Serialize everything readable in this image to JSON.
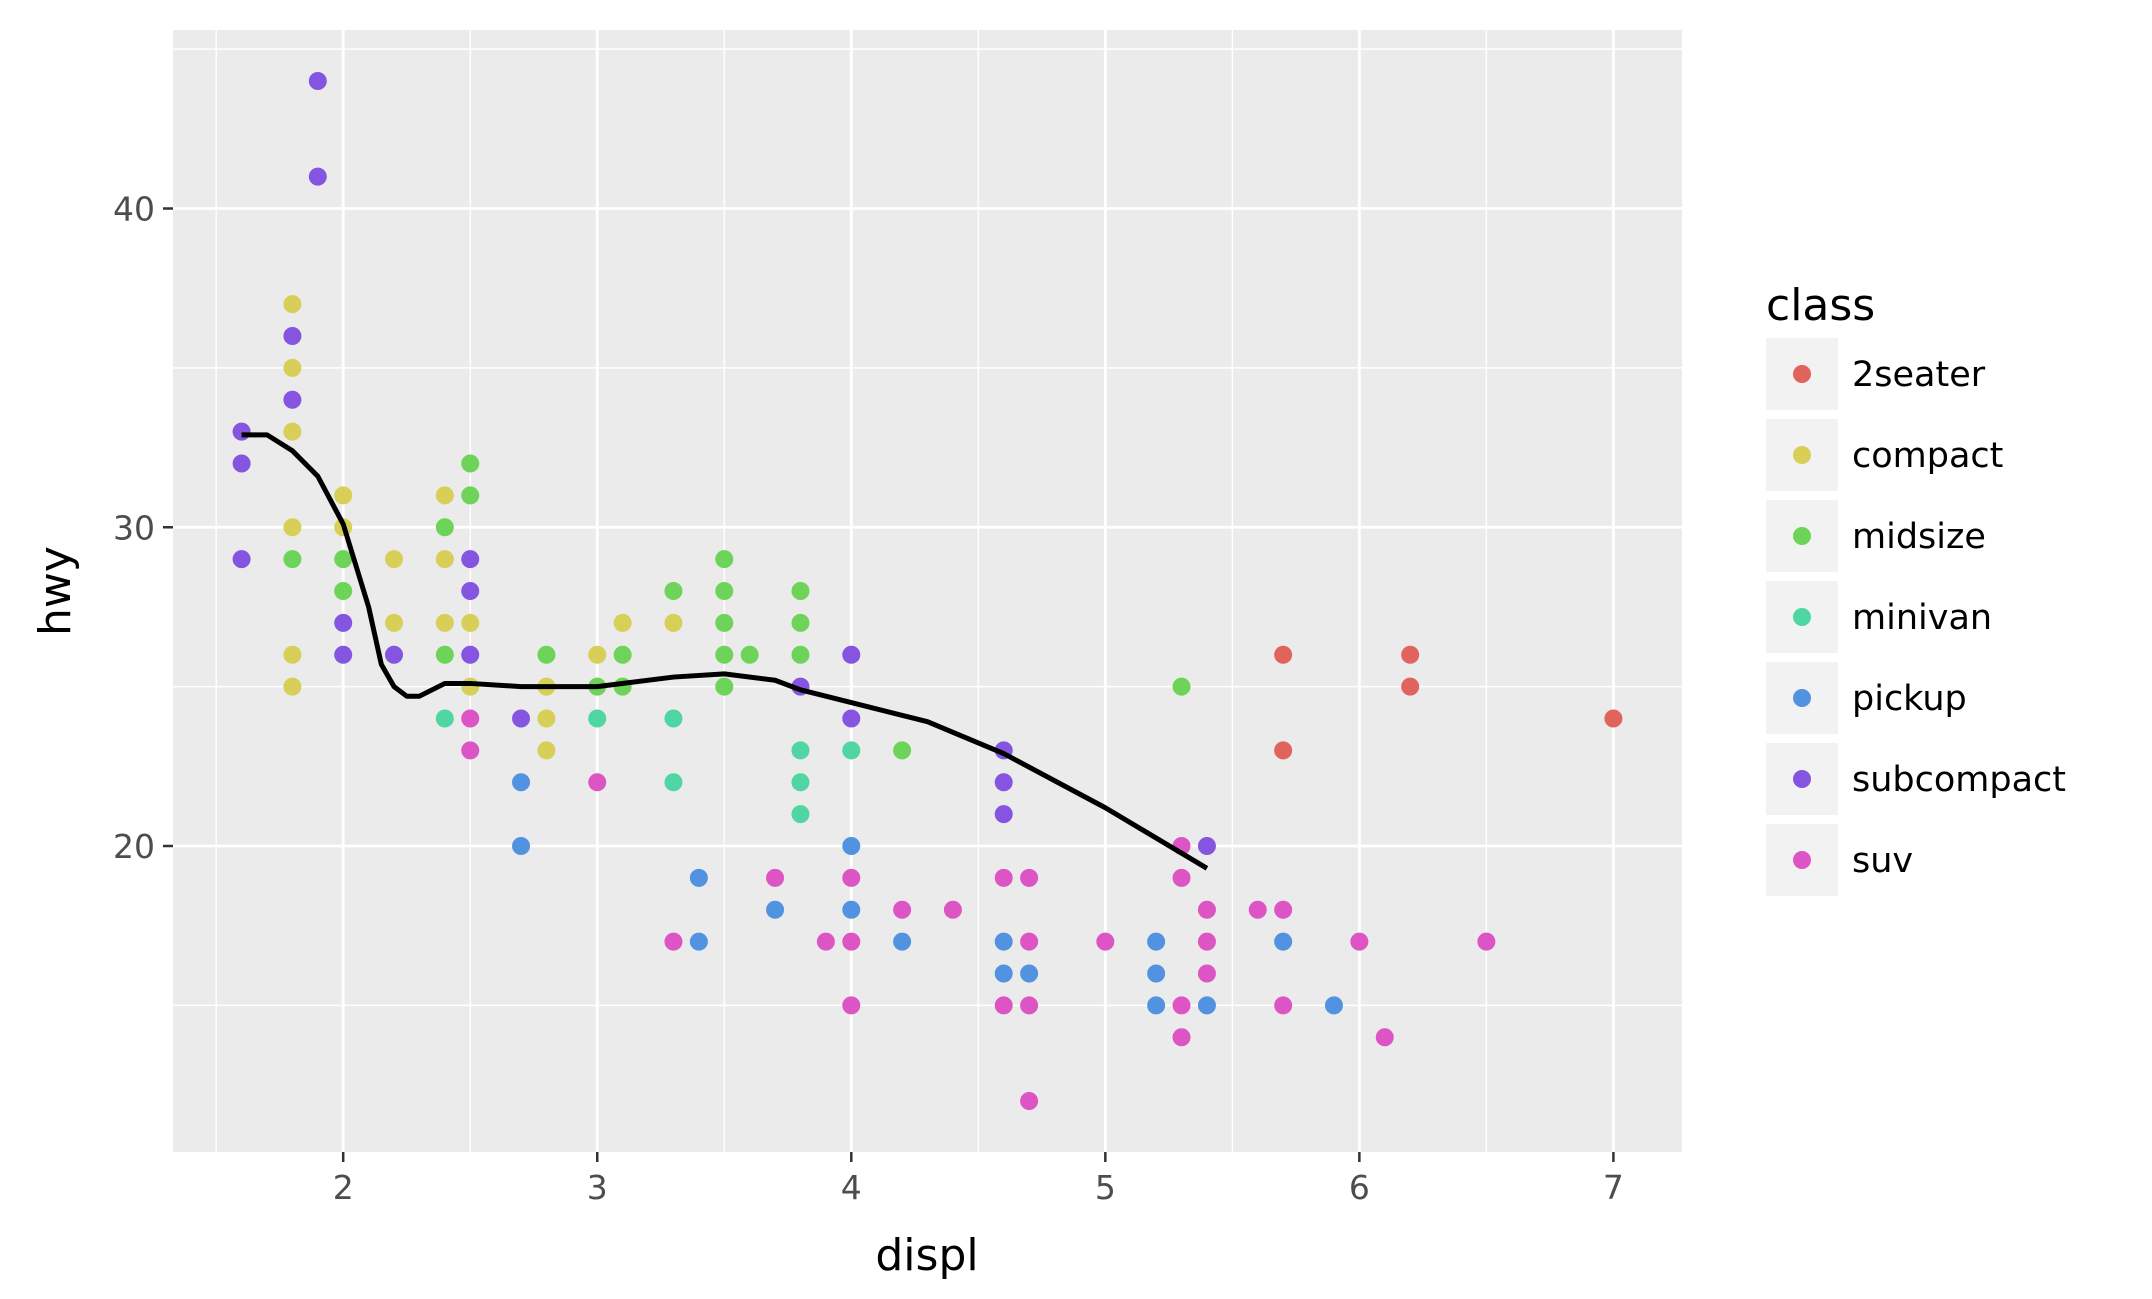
{
  "chart_data": {
    "type": "scatter",
    "xlabel": "displ",
    "ylabel": "hwy",
    "xlim": [
      1.33,
      7.27
    ],
    "ylim": [
      10.4,
      45.6
    ],
    "x_ticks": [
      2,
      3,
      4,
      5,
      6,
      7
    ],
    "y_ticks": [
      20,
      30,
      40
    ],
    "x_tick_labels": [
      "2",
      "3",
      "4",
      "5",
      "6",
      "7"
    ],
    "y_tick_labels": [
      "20",
      "30",
      "40"
    ],
    "grid": true,
    "legend": {
      "title": "class",
      "placement": "right",
      "entries": [
        {
          "label": "2seater",
          "color": "#E0645C"
        },
        {
          "label": "compact",
          "color": "#D7CF57"
        },
        {
          "label": "midsize",
          "color": "#6DD459"
        },
        {
          "label": "minivan",
          "color": "#4FD6A3"
        },
        {
          "label": "pickup",
          "color": "#5193E0"
        },
        {
          "label": "subcompact",
          "color": "#8554E0"
        },
        {
          "label": "suv",
          "color": "#DD55C4"
        }
      ]
    },
    "series": [
      {
        "name": "2seater",
        "points": [
          [
            5.7,
            26
          ],
          [
            5.7,
            23
          ],
          [
            6.2,
            26
          ],
          [
            6.2,
            25
          ],
          [
            7.0,
            24
          ]
        ]
      },
      {
        "name": "compact",
        "points": [
          [
            1.8,
            37
          ],
          [
            1.8,
            35
          ],
          [
            1.8,
            33
          ],
          [
            1.8,
            30
          ],
          [
            1.8,
            26
          ],
          [
            1.8,
            25
          ],
          [
            2.0,
            31
          ],
          [
            2.0,
            30
          ],
          [
            2.2,
            29
          ],
          [
            2.2,
            27
          ],
          [
            2.4,
            31
          ],
          [
            2.4,
            29
          ],
          [
            2.4,
            27
          ],
          [
            2.5,
            27
          ],
          [
            2.5,
            25
          ],
          [
            2.8,
            25
          ],
          [
            2.8,
            24
          ],
          [
            2.8,
            23
          ],
          [
            3.0,
            26
          ],
          [
            3.1,
            27
          ],
          [
            3.3,
            27
          ]
        ]
      },
      {
        "name": "midsize",
        "points": [
          [
            1.8,
            29
          ],
          [
            2.0,
            29
          ],
          [
            2.0,
            28
          ],
          [
            2.4,
            30
          ],
          [
            2.4,
            26
          ],
          [
            2.5,
            32
          ],
          [
            2.5,
            31
          ],
          [
            2.8,
            26
          ],
          [
            3.0,
            25
          ],
          [
            3.1,
            26
          ],
          [
            3.1,
            25
          ],
          [
            3.3,
            28
          ],
          [
            3.5,
            29
          ],
          [
            3.5,
            28
          ],
          [
            3.5,
            27
          ],
          [
            3.5,
            26
          ],
          [
            3.5,
            25
          ],
          [
            3.6,
            26
          ],
          [
            3.8,
            28
          ],
          [
            3.8,
            27
          ],
          [
            3.8,
            26
          ],
          [
            4.2,
            23
          ],
          [
            5.3,
            25
          ]
        ]
      },
      {
        "name": "minivan",
        "points": [
          [
            2.4,
            24
          ],
          [
            3.0,
            24
          ],
          [
            3.3,
            24
          ],
          [
            3.3,
            22
          ],
          [
            3.8,
            23
          ],
          [
            3.8,
            22
          ],
          [
            3.8,
            21
          ],
          [
            4.0,
            23
          ]
        ]
      },
      {
        "name": "pickup",
        "points": [
          [
            2.7,
            22
          ],
          [
            2.7,
            20
          ],
          [
            3.4,
            19
          ],
          [
            3.4,
            17
          ],
          [
            3.7,
            18
          ],
          [
            4.0,
            20
          ],
          [
            4.0,
            18
          ],
          [
            4.2,
            17
          ],
          [
            4.6,
            17
          ],
          [
            4.6,
            16
          ],
          [
            4.7,
            16
          ],
          [
            5.2,
            17
          ],
          [
            5.2,
            16
          ],
          [
            5.2,
            15
          ],
          [
            5.4,
            15
          ],
          [
            5.7,
            17
          ],
          [
            5.9,
            15
          ]
        ]
      },
      {
        "name": "subcompact",
        "points": [
          [
            1.6,
            33
          ],
          [
            1.6,
            32
          ],
          [
            1.6,
            29
          ],
          [
            1.8,
            36
          ],
          [
            1.8,
            34
          ],
          [
            1.9,
            44
          ],
          [
            1.9,
            41
          ],
          [
            2.0,
            27
          ],
          [
            2.0,
            26
          ],
          [
            2.2,
            26
          ],
          [
            2.5,
            29
          ],
          [
            2.5,
            28
          ],
          [
            2.5,
            26
          ],
          [
            2.7,
            24
          ],
          [
            3.8,
            25
          ],
          [
            4.0,
            26
          ],
          [
            4.0,
            24
          ],
          [
            4.6,
            23
          ],
          [
            4.6,
            22
          ],
          [
            4.6,
            21
          ],
          [
            5.4,
            20
          ]
        ]
      },
      {
        "name": "suv",
        "points": [
          [
            2.5,
            24
          ],
          [
            2.5,
            23
          ],
          [
            3.0,
            22
          ],
          [
            3.3,
            17
          ],
          [
            3.7,
            19
          ],
          [
            3.9,
            17
          ],
          [
            4.0,
            19
          ],
          [
            4.0,
            17
          ],
          [
            4.0,
            15
          ],
          [
            4.2,
            18
          ],
          [
            4.4,
            18
          ],
          [
            4.6,
            19
          ],
          [
            4.6,
            15
          ],
          [
            4.7,
            19
          ],
          [
            4.7,
            17
          ],
          [
            4.7,
            15
          ],
          [
            4.7,
            12
          ],
          [
            5.0,
            17
          ],
          [
            5.3,
            20
          ],
          [
            5.3,
            19
          ],
          [
            5.3,
            15
          ],
          [
            5.3,
            14
          ],
          [
            5.4,
            18
          ],
          [
            5.4,
            17
          ],
          [
            5.4,
            16
          ],
          [
            5.6,
            18
          ],
          [
            5.7,
            18
          ],
          [
            5.7,
            15
          ],
          [
            6.0,
            17
          ],
          [
            6.1,
            14
          ],
          [
            6.5,
            17
          ]
        ]
      }
    ],
    "smooth_line": {
      "color": "#000000",
      "points": [
        [
          1.6,
          32.9
        ],
        [
          1.7,
          32.9
        ],
        [
          1.8,
          32.4
        ],
        [
          1.9,
          31.6
        ],
        [
          2.0,
          30.1
        ],
        [
          2.1,
          27.5
        ],
        [
          2.15,
          25.7
        ],
        [
          2.2,
          25.0
        ],
        [
          2.25,
          24.7
        ],
        [
          2.3,
          24.7
        ],
        [
          2.4,
          25.1
        ],
        [
          2.5,
          25.1
        ],
        [
          2.7,
          25.0
        ],
        [
          3.0,
          25.0
        ],
        [
          3.3,
          25.3
        ],
        [
          3.5,
          25.4
        ],
        [
          3.7,
          25.2
        ],
        [
          3.8,
          24.9
        ],
        [
          4.0,
          24.5
        ],
        [
          4.3,
          23.9
        ],
        [
          4.6,
          22.9
        ],
        [
          5.0,
          21.2
        ],
        [
          5.4,
          19.3
        ]
      ]
    }
  }
}
